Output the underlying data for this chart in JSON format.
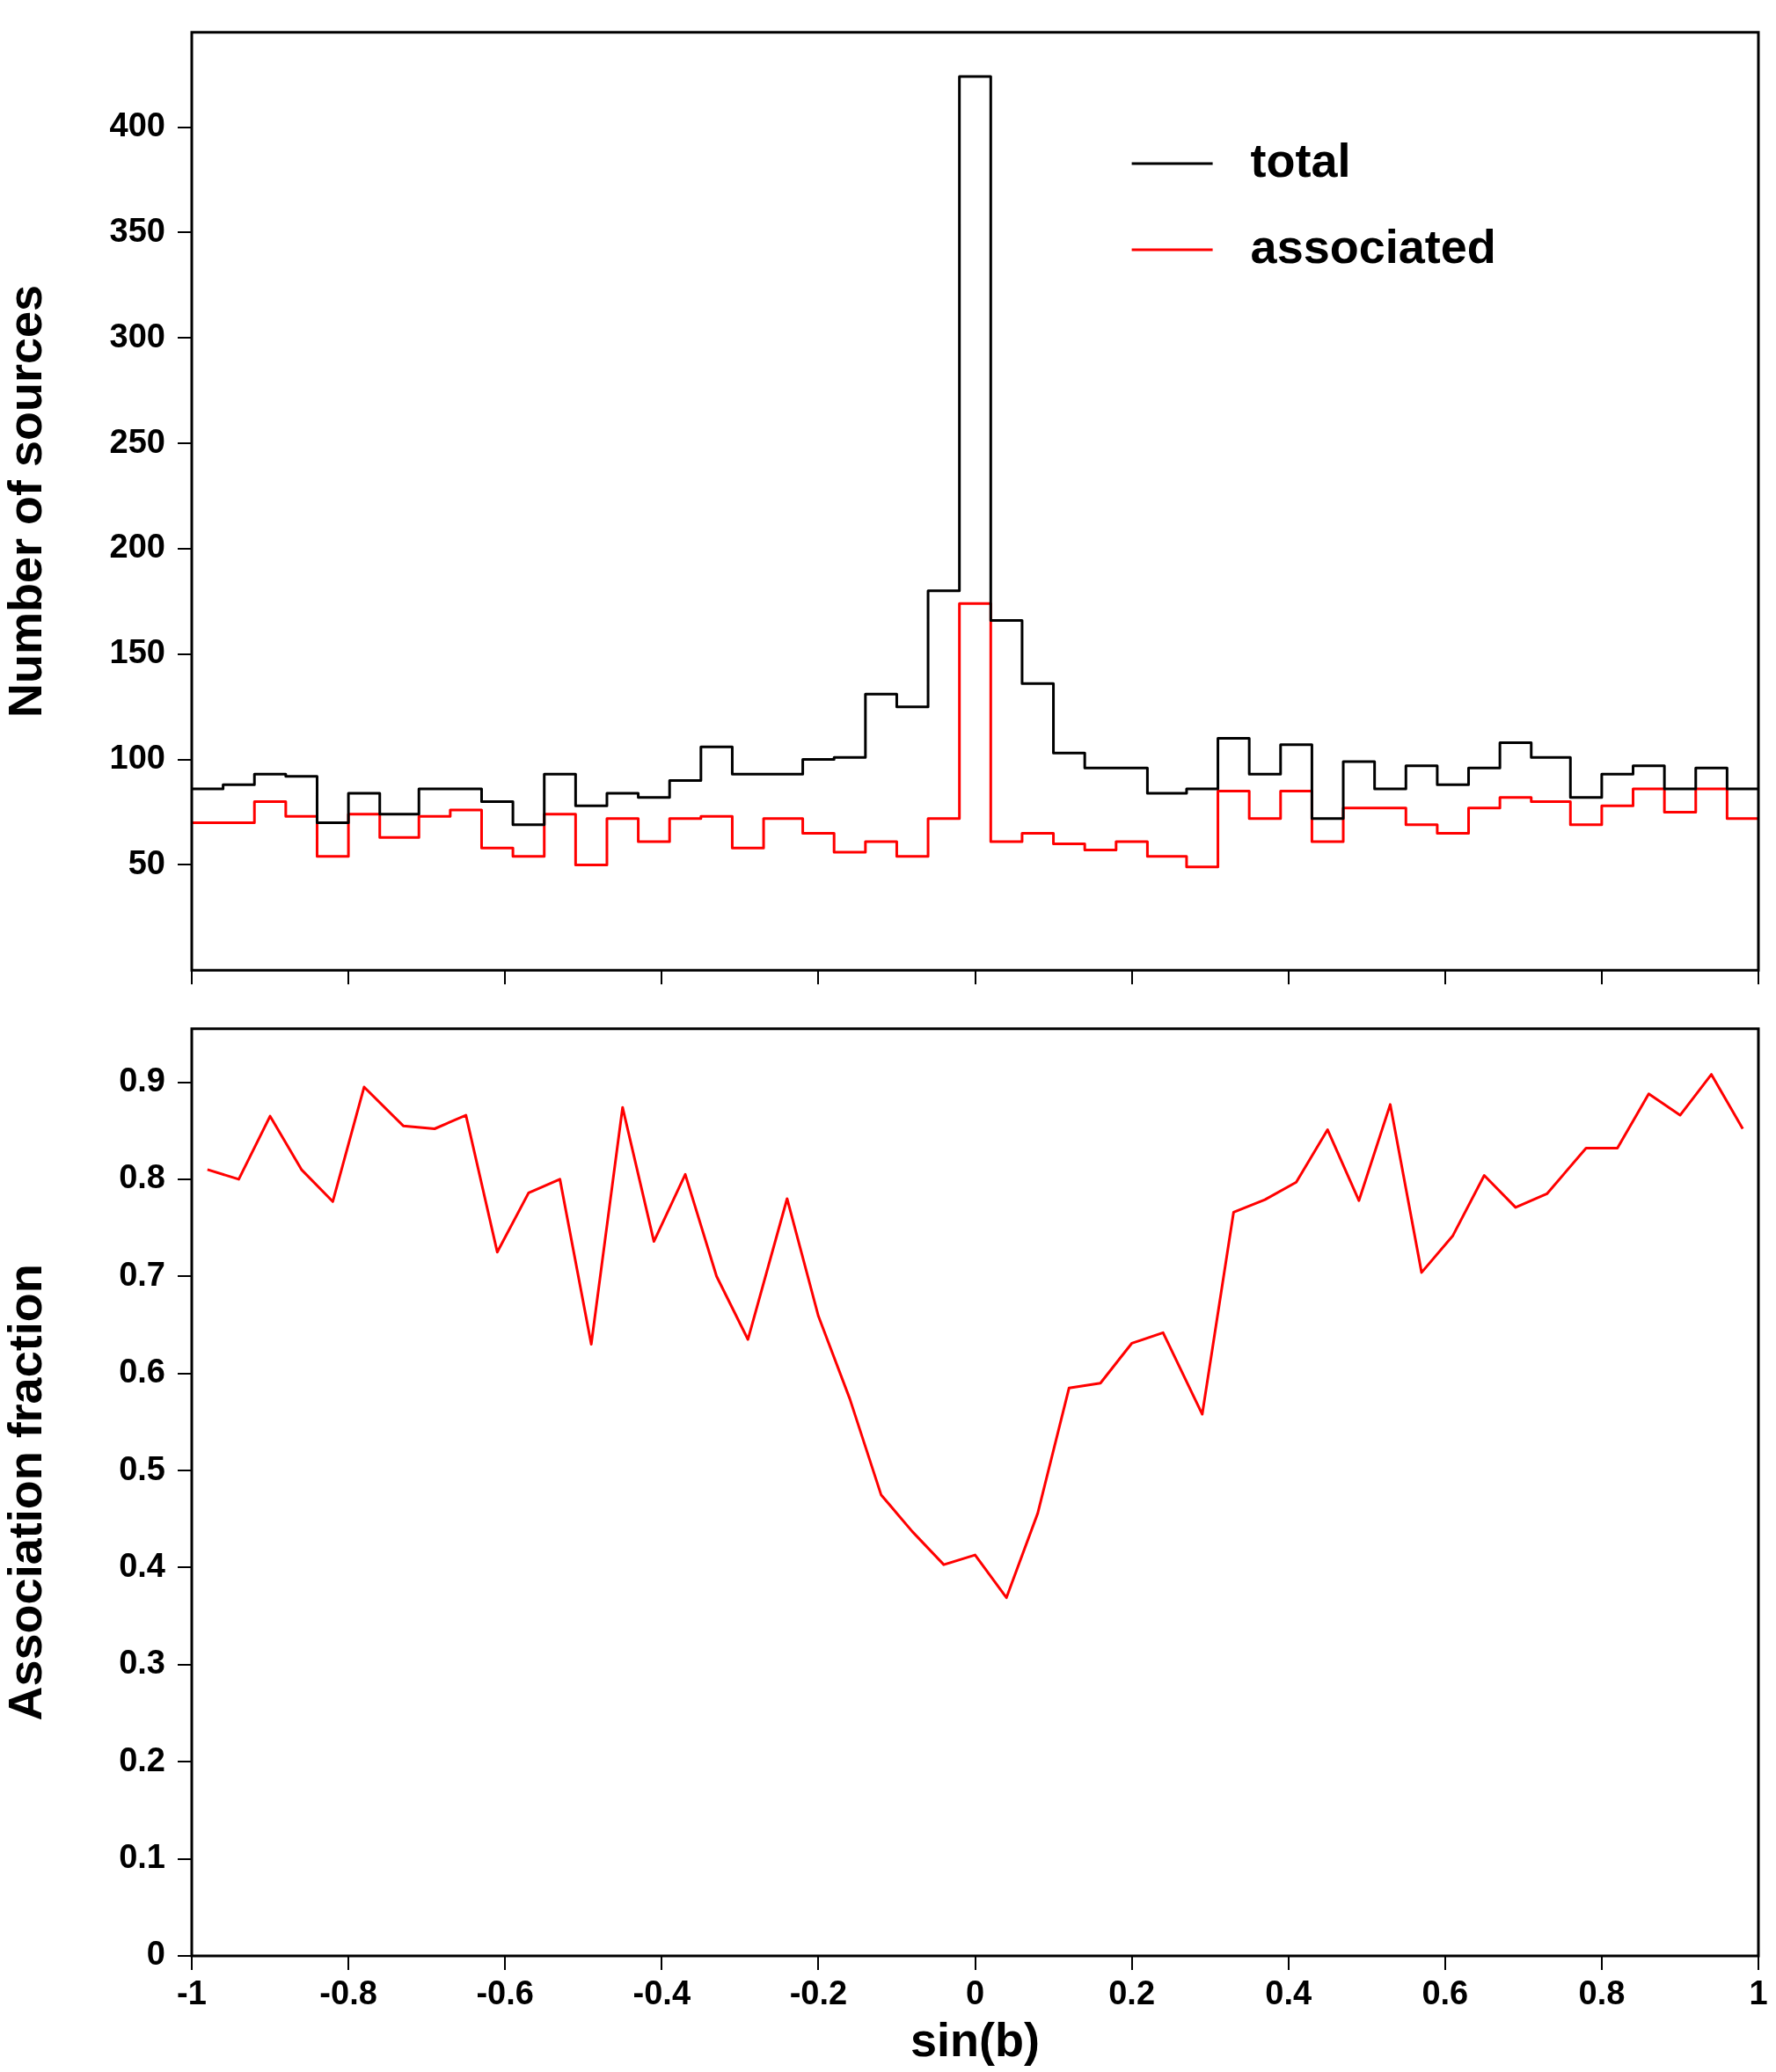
{
  "chart_data": [
    {
      "type": "histogram",
      "ylabel": "Number of sources",
      "legend": "top right",
      "grid": false,
      "tick_labels": "y",
      "bins": [
        -1,
        -0.96,
        -0.92,
        -0.88,
        -0.84,
        -0.8,
        -0.76,
        -0.71,
        -0.67,
        -0.63,
        -0.59,
        -0.55,
        -0.51,
        -0.47,
        -0.43,
        -0.39,
        -0.35,
        -0.31,
        -0.27,
        -0.22,
        -0.18,
        -0.14,
        -0.1,
        -0.06,
        -0.02,
        0.02,
        0.06,
        0.1,
        0.14,
        0.18,
        0.22,
        0.27,
        0.31,
        0.35,
        0.39,
        0.43,
        0.47,
        0.51,
        0.55,
        0.59,
        0.63,
        0.67,
        0.71,
        0.76,
        0.8,
        0.84,
        0.88,
        0.92,
        0.96,
        1
      ],
      "series": [
        {
          "name": "total",
          "color": "#000000",
          "values": [
            86,
            88,
            93,
            92,
            70,
            84,
            74,
            86,
            86,
            80,
            69,
            93,
            78,
            84,
            82,
            90,
            106,
            93,
            93,
            100,
            101,
            131,
            125,
            180,
            424,
            166,
            136,
            103,
            96,
            96,
            84,
            86,
            110,
            93,
            107,
            72,
            99,
            86,
            97,
            88,
            96,
            108,
            101,
            82,
            93,
            97,
            86,
            96,
            86
          ]
        },
        {
          "name": "associated",
          "color": "#ff0000",
          "values": [
            70,
            70,
            80,
            73,
            54,
            74,
            63,
            73,
            76,
            58,
            54,
            74,
            50,
            72,
            61,
            72,
            73,
            58,
            72,
            65,
            56,
            61,
            54,
            72,
            174,
            61,
            65,
            60,
            57,
            61,
            54,
            49,
            85,
            72,
            85,
            61,
            77,
            77,
            69,
            65,
            77,
            82,
            80,
            69,
            78,
            86,
            75,
            86,
            72
          ]
        }
      ],
      "xlim": [
        -1,
        1
      ],
      "xticks": [
        -1,
        -0.8,
        -0.6,
        -0.4,
        -0.2,
        0,
        0.2,
        0.4,
        0.6,
        0.8,
        1
      ],
      "ylim": [
        0,
        445
      ],
      "yticks": [
        50,
        100,
        150,
        200,
        250,
        300,
        350,
        400
      ]
    },
    {
      "type": "line",
      "xlabel": "sin(b)",
      "ylabel": "Association fraction",
      "grid": false,
      "legend": false,
      "x": [
        -0.98,
        -0.94,
        -0.9,
        -0.86,
        -0.82,
        -0.78,
        -0.73,
        -0.69,
        -0.65,
        -0.61,
        -0.57,
        -0.53,
        -0.49,
        -0.45,
        -0.41,
        -0.37,
        -0.33,
        -0.29,
        -0.24,
        -0.2,
        -0.16,
        -0.12,
        -0.08,
        -0.04,
        0,
        0.04,
        0.08,
        0.12,
        0.16,
        0.2,
        0.24,
        0.29,
        0.33,
        0.37,
        0.41,
        0.45,
        0.49,
        0.53,
        0.57,
        0.61,
        0.65,
        0.69,
        0.73,
        0.78,
        0.82,
        0.86,
        0.9,
        0.94,
        0.98
      ],
      "series": [
        {
          "color": "#ff0000",
          "values": [
            0.81,
            0.8,
            0.865,
            0.81,
            0.777,
            0.895,
            0.855,
            0.852,
            0.866,
            0.725,
            0.786,
            0.8,
            0.63,
            0.874,
            0.736,
            0.805,
            0.7,
            0.635,
            0.78,
            0.659,
            0.574,
            0.475,
            0.437,
            0.403,
            0.413,
            0.369,
            0.456,
            0.585,
            0.59,
            0.631,
            0.642,
            0.558,
            0.766,
            0.779,
            0.797,
            0.851,
            0.778,
            0.877,
            0.704,
            0.742,
            0.804,
            0.771,
            0.785,
            0.832,
            0.832,
            0.888,
            0.866,
            0.908,
            0.852
          ]
        }
      ],
      "xlim": [
        -1,
        1
      ],
      "xticks": [
        -1,
        -0.8,
        -0.6,
        -0.4,
        -0.2,
        0,
        0.2,
        0.4,
        0.6,
        0.8,
        1
      ],
      "ylim": [
        0,
        0.955
      ],
      "yticks": [
        0,
        0.1,
        0.2,
        0.3,
        0.4,
        0.5,
        0.6,
        0.7,
        0.8,
        0.9
      ]
    }
  ]
}
